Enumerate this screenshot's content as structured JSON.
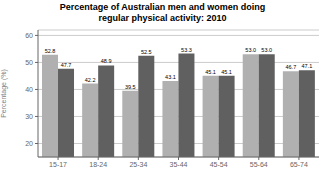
{
  "chart_data": {
    "type": "bar",
    "title": "Percentage of Australian men and women doing\nregular physical activity: 2010",
    "categories": [
      "15-17",
      "18-24",
      "25-34",
      "35-44",
      "45-54",
      "55-64",
      "65-74"
    ],
    "series": [
      {
        "color": "#b0b0b0",
        "values": [
          52.8,
          42.2,
          39.5,
          43.1,
          45.1,
          53.0,
          46.7
        ],
        "value_labels": [
          "52.8",
          "42.2",
          "39.5",
          "43.1",
          "45.1",
          "53.0",
          "46.7"
        ]
      },
      {
        "color": "#606060",
        "values": [
          47.7,
          48.9,
          52.5,
          53.3,
          45.1,
          53.0,
          47.1
        ],
        "value_labels": [
          "47.7",
          "48.9",
          "52.5",
          "53.3",
          "45.1",
          "53.0",
          "47.1"
        ]
      }
    ],
    "y_label": "Percentage (%)",
    "ylim": [
      15,
      62
    ],
    "yticks": [
      20,
      30,
      40,
      50,
      60
    ],
    "grid": true,
    "data_labels": true
  }
}
